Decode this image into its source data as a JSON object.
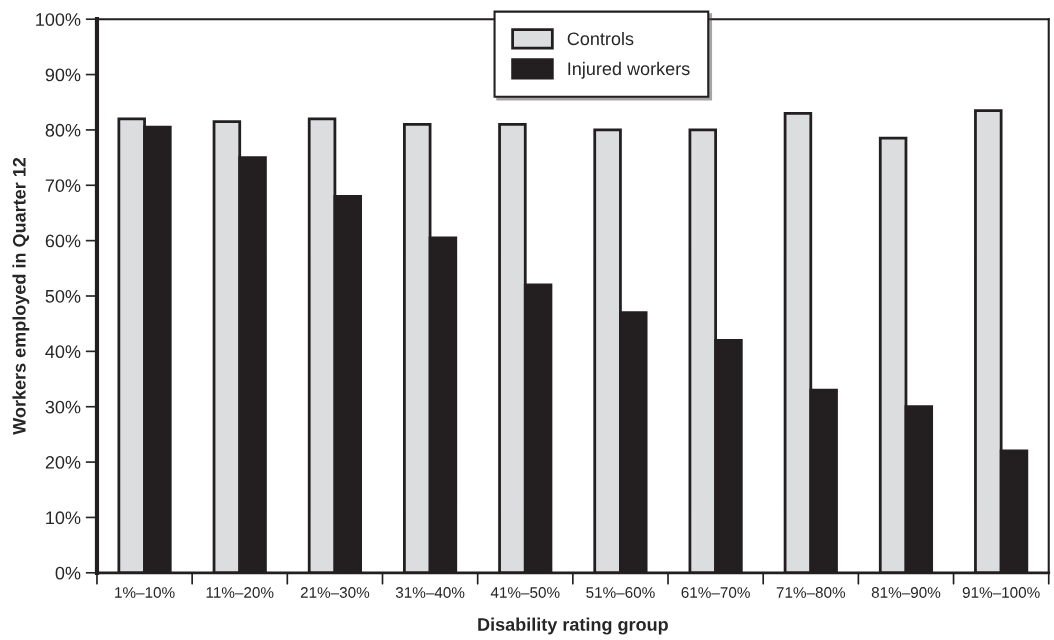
{
  "chart_data": {
    "type": "bar",
    "xlabel": "Disability rating group",
    "ylabel": "Workers employed in Quarter 12",
    "categories": [
      "1%–10%",
      "11%–20%",
      "21%–30%",
      "31%–40%",
      "41%–50%",
      "51%–60%",
      "61%–70%",
      "71%–80%",
      "81%–90%",
      "91%–100%"
    ],
    "series": [
      {
        "name": "Controls",
        "color": "#dcdddf",
        "values": [
          82,
          81.5,
          82,
          81,
          81,
          80,
          80,
          83,
          78.5,
          83.5
        ]
      },
      {
        "name": "Injured workers",
        "color": "#231f20",
        "values": [
          80.5,
          75,
          68,
          60.5,
          52,
          47,
          42,
          33,
          30,
          22
        ]
      }
    ],
    "ylim": [
      0,
      100
    ],
    "yticks": [
      {
        "value": 0,
        "label": "0%"
      },
      {
        "value": 10,
        "label": "10%"
      },
      {
        "value": 20,
        "label": "20%"
      },
      {
        "value": 30,
        "label": "30%"
      },
      {
        "value": 40,
        "label": "40%"
      },
      {
        "value": 50,
        "label": "50%"
      },
      {
        "value": 60,
        "label": "60%"
      },
      {
        "value": 70,
        "label": "70%"
      },
      {
        "value": 80,
        "label": "80%"
      },
      {
        "value": 90,
        "label": "90%"
      },
      {
        "value": 100,
        "label": "100%"
      }
    ],
    "grid": false,
    "legend": "top"
  }
}
